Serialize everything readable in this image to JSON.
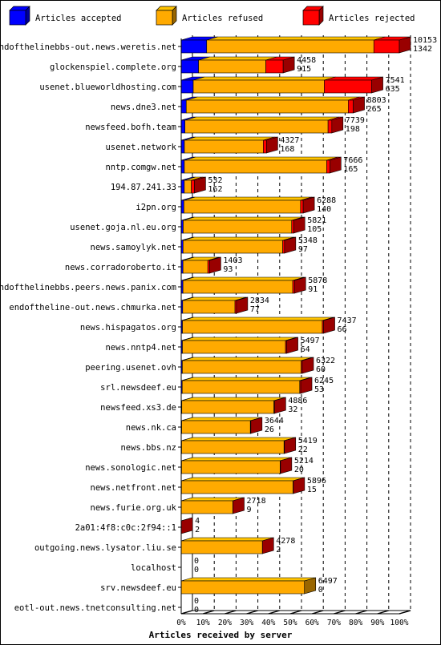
{
  "chart_data": {
    "type": "bar",
    "orientation": "horizontal",
    "stacked": true,
    "title": "",
    "xlabel": "Articles received by server",
    "ylabel": "",
    "xlim": [
      0,
      100
    ],
    "x_ticks": [
      "0%",
      "10%",
      "20%",
      "30%",
      "40%",
      "50%",
      "60%",
      "70%",
      "80%",
      "90%",
      "100%"
    ],
    "legend": [
      {
        "label": "Articles accepted",
        "color": "#0000ff"
      },
      {
        "label": "Articles refused",
        "color": "#ffaa00"
      },
      {
        "label": "Articles rejected",
        "color": "#ff0000"
      }
    ],
    "max_total": 11495,
    "servers": [
      {
        "name": "endofthelinebbs-out.news.weretis.net",
        "accepted": 1342,
        "refused": 8811,
        "rejected": 1342,
        "label_top": "10153",
        "label_bottom": "1342"
      },
      {
        "name": "glockenspiel.complete.org",
        "accepted": 915,
        "refused": 3543,
        "rejected": 915,
        "label_top": "4458",
        "label_bottom": "915"
      },
      {
        "name": "usenet.blueworldhosting.com",
        "accepted": 635,
        "refused": 6906,
        "rejected": 2500,
        "label_top": "7541",
        "label_bottom": "635"
      },
      {
        "name": "news.dne3.net",
        "accepted": 265,
        "refused": 8538,
        "rejected": 265,
        "label_top": "8803",
        "label_bottom": "265"
      },
      {
        "name": "newsfeed.bofh.team",
        "accepted": 198,
        "refused": 7541,
        "rejected": 198,
        "label_top": "7739",
        "label_bottom": "198"
      },
      {
        "name": "usenet.network",
        "accepted": 168,
        "refused": 4159,
        "rejected": 168,
        "label_top": "4327",
        "label_bottom": "168"
      },
      {
        "name": "nntp.comgw.net",
        "accepted": 165,
        "refused": 7501,
        "rejected": 165,
        "label_top": "7666",
        "label_bottom": "165"
      },
      {
        "name": "194.87.241.33",
        "accepted": 162,
        "refused": 370,
        "rejected": 162,
        "label_top": "532",
        "label_bottom": "162"
      },
      {
        "name": "i2pn.org",
        "accepted": 140,
        "refused": 6148,
        "rejected": 140,
        "label_top": "6288",
        "label_bottom": "140"
      },
      {
        "name": "usenet.goja.nl.eu.org",
        "accepted": 105,
        "refused": 5716,
        "rejected": 105,
        "label_top": "5821",
        "label_bottom": "105"
      },
      {
        "name": "news.samoylyk.net",
        "accepted": 97,
        "refused": 5251,
        "rejected": 97,
        "label_top": "5348",
        "label_bottom": "97"
      },
      {
        "name": "news.corradoroberto.it",
        "accepted": 93,
        "refused": 1310,
        "rejected": 93,
        "label_top": "1403",
        "label_bottom": "93"
      },
      {
        "name": "endofthelinebbs.peers.news.panix.com",
        "accepted": 91,
        "refused": 5787,
        "rejected": 91,
        "label_top": "5878",
        "label_bottom": "91"
      },
      {
        "name": "endoftheline-out.news.chmurka.net",
        "accepted": 77,
        "refused": 2757,
        "rejected": 77,
        "label_top": "2834",
        "label_bottom": "77"
      },
      {
        "name": "news.hispagatos.org",
        "accepted": 66,
        "refused": 7371,
        "rejected": 66,
        "label_top": "7437",
        "label_bottom": "66"
      },
      {
        "name": "news.nntp4.net",
        "accepted": 64,
        "refused": 5433,
        "rejected": 64,
        "label_top": "5497",
        "label_bottom": "64"
      },
      {
        "name": "peering.usenet.ovh",
        "accepted": 60,
        "refused": 6262,
        "rejected": 60,
        "label_top": "6322",
        "label_bottom": "60"
      },
      {
        "name": "srl.newsdeef.eu",
        "accepted": 53,
        "refused": 6192,
        "rejected": 53,
        "label_top": "6245",
        "label_bottom": "53"
      },
      {
        "name": "newsfeed.xs3.de",
        "accepted": 32,
        "refused": 4854,
        "rejected": 32,
        "label_top": "4886",
        "label_bottom": "32"
      },
      {
        "name": "news.nk.ca",
        "accepted": 26,
        "refused": 3618,
        "rejected": 26,
        "label_top": "3644",
        "label_bottom": "26"
      },
      {
        "name": "news.bbs.nz",
        "accepted": 22,
        "refused": 5397,
        "rejected": 22,
        "label_top": "5419",
        "label_bottom": "22"
      },
      {
        "name": "news.sonologic.net",
        "accepted": 20,
        "refused": 5194,
        "rejected": 20,
        "label_top": "5214",
        "label_bottom": "20"
      },
      {
        "name": "news.netfront.net",
        "accepted": 15,
        "refused": 5881,
        "rejected": 15,
        "label_top": "5896",
        "label_bottom": "15"
      },
      {
        "name": "news.furie.org.uk",
        "accepted": 9,
        "refused": 2709,
        "rejected": 9,
        "label_top": "2718",
        "label_bottom": "9"
      },
      {
        "name": "2a01:4f8:c0c:2f94::1",
        "accepted": 2,
        "refused": 2,
        "rejected": 2,
        "label_top": "4",
        "label_bottom": "2"
      },
      {
        "name": "outgoing.news.lysator.liu.se",
        "accepted": 2,
        "refused": 4276,
        "rejected": 2,
        "label_top": "4278",
        "label_bottom": "2"
      },
      {
        "name": "localhost",
        "accepted": 0,
        "refused": 0,
        "rejected": 0,
        "label_top": "0",
        "label_bottom": "0"
      },
      {
        "name": "srv.newsdeef.eu",
        "accepted": 0,
        "refused": 6497,
        "rejected": 0,
        "label_top": "6497",
        "label_bottom": "0"
      },
      {
        "name": "eotl-out.news.tnetconsulting.net",
        "accepted": 0,
        "refused": 0,
        "rejected": 0,
        "label_top": "0",
        "label_bottom": "0"
      }
    ]
  }
}
